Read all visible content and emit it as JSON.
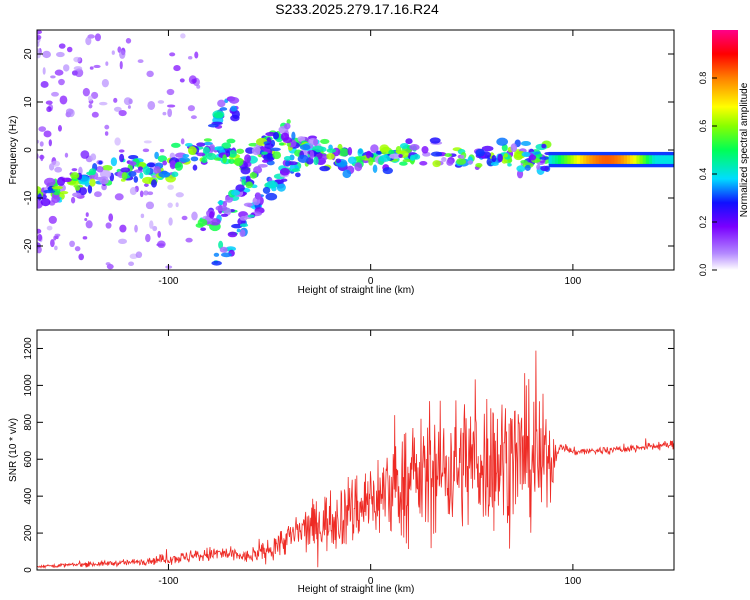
{
  "title": "S233.2025.279.17.16.R24",
  "colors": {
    "line": "#ee2b25",
    "axis": "#000000"
  },
  "chart_data": [
    {
      "type": "heatmap",
      "name": "spectrogram",
      "xlabel": "Height of straight line (km)",
      "ylabel": "Frequency (Hz)",
      "xlim": [
        -165,
        150
      ],
      "ylim": [
        -25,
        25
      ],
      "xticks": [
        -100,
        0,
        100
      ],
      "xtick_labels": [
        "-100",
        "0",
        "100"
      ],
      "yticks": [
        -20,
        -10,
        0,
        10,
        20
      ],
      "ytick_labels": [
        "-20",
        "-10",
        "0",
        "10",
        "20"
      ],
      "colorbar": {
        "label": "Normalized spectral amplitude",
        "range": [
          0,
          1
        ],
        "ticks": [
          0.0,
          0.2,
          0.4,
          0.6,
          0.8
        ],
        "tick_labels": [
          "0.0",
          "0.2",
          "0.4",
          "0.6",
          "0.8"
        ],
        "colormap": "rainbow (white-violet-blue-cyan-green-yellow-red-magenta)"
      },
      "ridges": [
        {
          "x": [
            -165,
            -150,
            -140,
            -128,
            -118,
            -110,
            -100,
            -92,
            -85,
            -78,
            -70,
            -62,
            -55,
            -50,
            -45,
            -40,
            -35,
            -28,
            -20,
            -10,
            0,
            10,
            20,
            30,
            40,
            50,
            60,
            70,
            80,
            88
          ],
          "y": [
            -9,
            -8,
            -6,
            -4,
            -4,
            -5,
            -4,
            -2,
            -1,
            0,
            -1,
            -2,
            0,
            2,
            3,
            2,
            0,
            0,
            -1,
            -2,
            -2,
            -1,
            -1,
            -1,
            -2,
            -2,
            -1,
            -1,
            -2,
            -2
          ],
          "amp": 0.35
        },
        {
          "x": [
            -78,
            -74,
            -70,
            -66
          ],
          "y": [
            4,
            8,
            11,
            8
          ],
          "amp": 0.25
        },
        {
          "x": [
            -85,
            -75,
            -65,
            -58,
            -52,
            -46,
            -40
          ],
          "y": [
            -16,
            -13,
            -9,
            -5,
            -1,
            2,
            4
          ],
          "amp": 0.3
        },
        {
          "x": [
            -77,
            -68,
            -60,
            -50,
            -40,
            -32,
            -25
          ],
          "y": [
            -24,
            -18,
            -13,
            -8,
            -4,
            -1,
            1
          ],
          "amp": 0.25
        }
      ],
      "tone": {
        "x_start": 88,
        "x_end": 150,
        "y": -2,
        "amp_range": [
          0.4,
          0.95
        ]
      },
      "noise_region": {
        "x_start": -165,
        "x_end": -110,
        "y_range": [
          -25,
          25
        ]
      }
    },
    {
      "type": "line",
      "name": "snr",
      "xlabel": "Height of straight line (km)",
      "ylabel": "SNR (10 * v/v)",
      "xlim": [
        -165,
        150
      ],
      "ylim": [
        0,
        1300
      ],
      "xticks": [
        -100,
        0,
        100
      ],
      "xtick_labels": [
        "-100",
        "0",
        "100"
      ],
      "yticks": [
        0,
        200,
        400,
        600,
        800,
        1000,
        1200
      ],
      "ytick_labels": [
        "0",
        "200",
        "400",
        "600",
        "800",
        "1000",
        "1200"
      ],
      "envelope": {
        "x": [
          -165,
          -120,
          -90,
          -75,
          -60,
          -50,
          -40,
          -30,
          -20,
          -10,
          0,
          10,
          20,
          30,
          40,
          50,
          60,
          70,
          80,
          88,
          92,
          95,
          100,
          120,
          150
        ],
        "mean": [
          20,
          40,
          70,
          90,
          70,
          110,
          180,
          230,
          270,
          320,
          380,
          430,
          480,
          520,
          560,
          590,
          600,
          610,
          600,
          580,
          640,
          670,
          640,
          650,
          680
        ],
        "spread": [
          8,
          15,
          30,
          40,
          30,
          55,
          80,
          120,
          150,
          180,
          200,
          240,
          260,
          290,
          310,
          330,
          350,
          330,
          320,
          300,
          30,
          20,
          20,
          20,
          20
        ],
        "n_points": 1260
      }
    }
  ]
}
